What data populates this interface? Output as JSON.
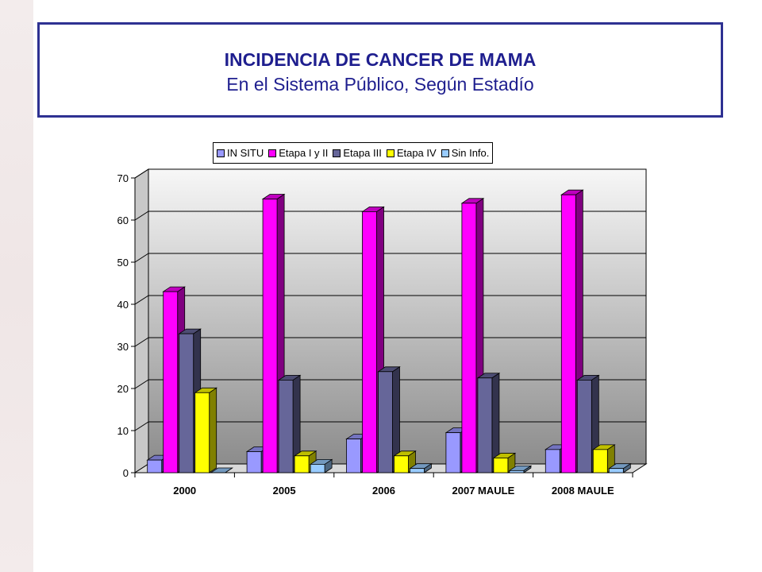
{
  "header": {
    "title": "INCIDENCIA DE CANCER DE MAMA",
    "subtitle": "En el Sistema Público, Según Estadío"
  },
  "colors": {
    "title_border": "#2e3192",
    "title_text": "#1f1f8f"
  },
  "chart_data": {
    "type": "bar",
    "title": "INCIDENCIA DE CANCER DE MAMA",
    "subtitle": "En el Sistema Público, Según Estadío",
    "categories": [
      "2000",
      "2005",
      "2006",
      "2007 MAULE",
      "2008 MAULE"
    ],
    "series": [
      {
        "name": "IN SITU",
        "color": "#9999ff",
        "values": [
          3,
          5,
          8,
          9.5,
          5.5
        ]
      },
      {
        "name": "Etapa I y II",
        "color": "#ff00ff",
        "values": [
          43,
          65,
          62,
          64,
          66
        ]
      },
      {
        "name": "Etapa III",
        "color": "#666699",
        "values": [
          33,
          22,
          24,
          22.5,
          22
        ]
      },
      {
        "name": "Etapa IV",
        "color": "#ffff00",
        "values": [
          19,
          4,
          4,
          3.5,
          5.5
        ]
      },
      {
        "name": "Sin Info.",
        "color": "#99ccff",
        "values": [
          0,
          2,
          1,
          0.5,
          1
        ]
      }
    ],
    "yticks": [
      0,
      10,
      20,
      30,
      40,
      50,
      60,
      70
    ],
    "ylim": [
      0,
      70
    ],
    "xlabel": "",
    "ylabel": "",
    "grid": true,
    "legend_position": "top"
  }
}
